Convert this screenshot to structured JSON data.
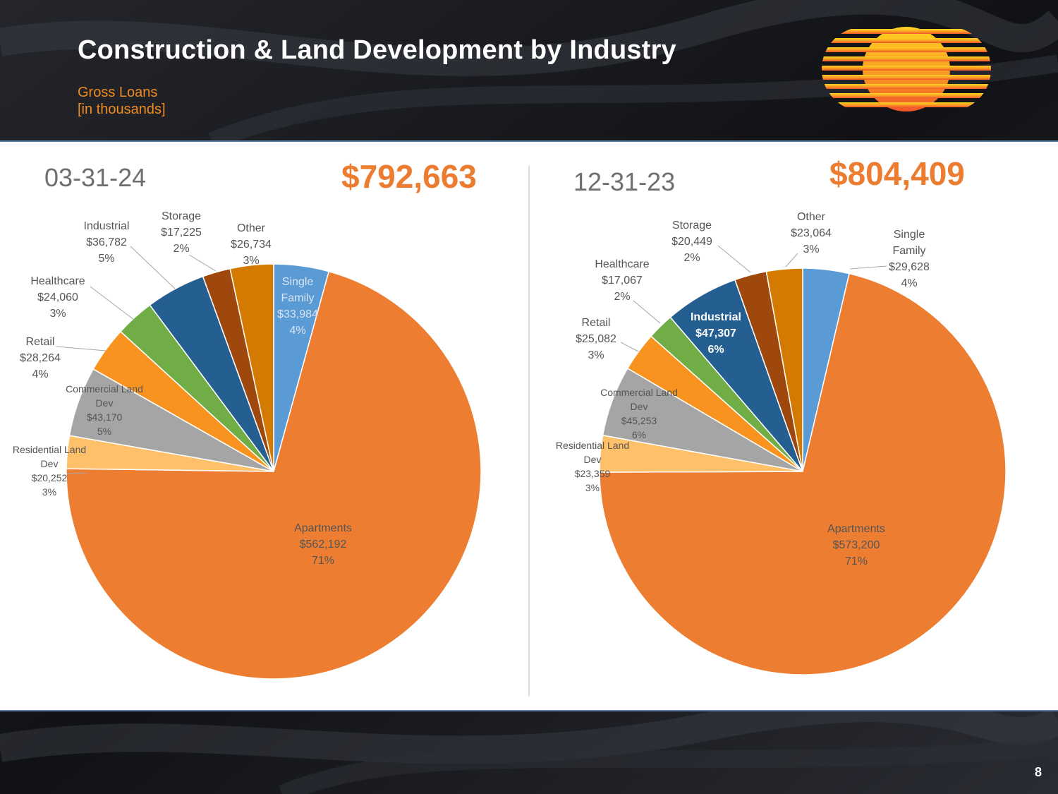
{
  "title": "Construction & Land Development by Industry",
  "subtitle_line1": "Gross Loans",
  "subtitle_line2": "[in thousands]",
  "page_number": "8",
  "colors": {
    "accent_orange": "#ED7D31",
    "header_bg": "#16171B",
    "title": "#FFFFFF"
  },
  "chart_data": [
    {
      "type": "pie",
      "title": "03-31-24",
      "total_label": "$792,663",
      "slices": [
        {
          "name": "Single Family",
          "value": 33984,
          "value_label": "$33,984",
          "pct_label": "4%",
          "color": "#5B9BD5"
        },
        {
          "name": "Apartments",
          "value": 562192,
          "value_label": "$562,192",
          "pct_label": "71%",
          "color": "#ED7D31"
        },
        {
          "name": "Residential Land Dev",
          "value": 20252,
          "value_label": "$20,252",
          "pct_label": "3%",
          "color": "#FFC06A"
        },
        {
          "name": "Commercial Land Dev",
          "value": 43170,
          "value_label": "$43,170",
          "pct_label": "5%",
          "color": "#A5A5A5"
        },
        {
          "name": "Retail",
          "value": 28264,
          "value_label": "$28,264",
          "pct_label": "4%",
          "color": "#F7931E"
        },
        {
          "name": "Healthcare",
          "value": 24060,
          "value_label": "$24,060",
          "pct_label": "3%",
          "color": "#70AD47"
        },
        {
          "name": "Industrial",
          "value": 36782,
          "value_label": "$36,782",
          "pct_label": "5%",
          "color": "#255E91"
        },
        {
          "name": "Storage",
          "value": 17225,
          "value_label": "$17,225",
          "pct_label": "2%",
          "color": "#9E480E"
        },
        {
          "name": "Other",
          "value": 26734,
          "value_label": "$26,734",
          "pct_label": "3%",
          "color": "#D47A00"
        }
      ]
    },
    {
      "type": "pie",
      "title": "12-31-23",
      "total_label": "$804,409",
      "slices": [
        {
          "name": "Single Family",
          "value": 29628,
          "value_label": "$29,628",
          "pct_label": "4%",
          "color": "#5B9BD5"
        },
        {
          "name": "Apartments",
          "value": 573200,
          "value_label": "$573,200",
          "pct_label": "71%",
          "color": "#ED7D31"
        },
        {
          "name": "Residential Land Dev",
          "value": 23359,
          "value_label": "$23,359",
          "pct_label": "3%",
          "color": "#FFC06A"
        },
        {
          "name": "Commercial Land Dev",
          "value": 45253,
          "value_label": "$45,253",
          "pct_label": "6%",
          "color": "#A5A5A5"
        },
        {
          "name": "Retail",
          "value": 25082,
          "value_label": "$25,082",
          "pct_label": "3%",
          "color": "#F7931E"
        },
        {
          "name": "Healthcare",
          "value": 17067,
          "value_label": "$17,067",
          "pct_label": "2%",
          "color": "#70AD47"
        },
        {
          "name": "Industrial",
          "value": 47307,
          "value_label": "$47,307",
          "pct_label": "6%",
          "color": "#255E91"
        },
        {
          "name": "Storage",
          "value": 20449,
          "value_label": "$20,449",
          "pct_label": "2%",
          "color": "#9E480E"
        },
        {
          "name": "Other",
          "value": 23064,
          "value_label": "$23,064",
          "pct_label": "3%",
          "color": "#D47A00"
        }
      ]
    }
  ]
}
